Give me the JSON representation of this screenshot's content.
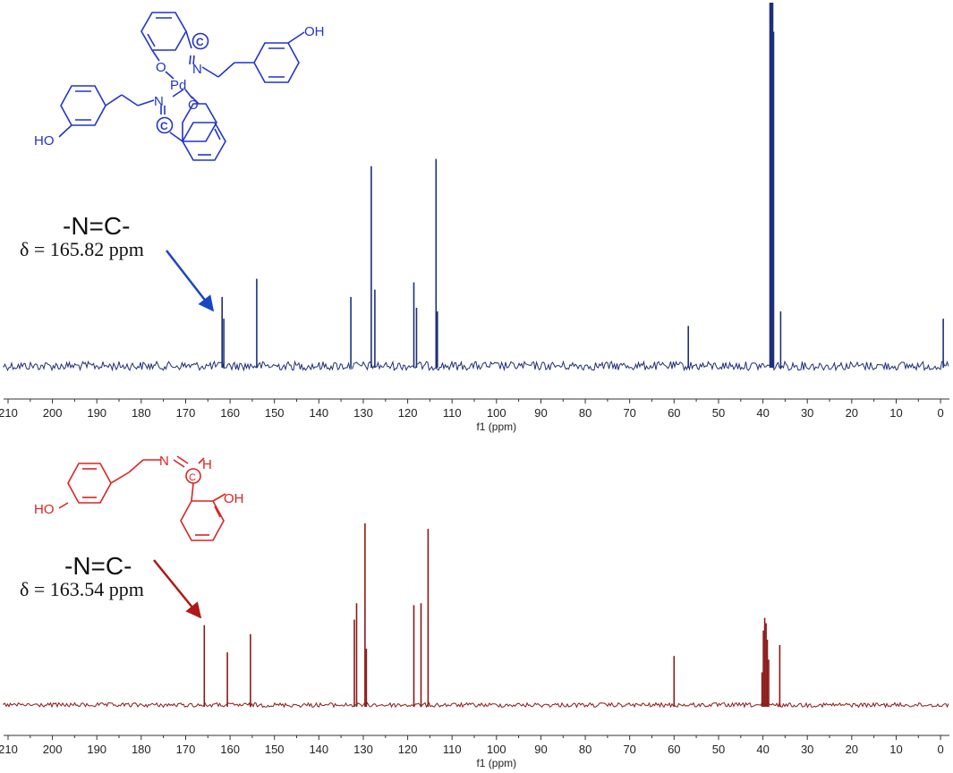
{
  "chart_data": [
    {
      "type": "line",
      "title": "",
      "xlabel": "f1 (ppm)",
      "ylabel": "",
      "xlim": [
        211,
        -2
      ],
      "x_reversed": true,
      "x_ticks": [
        "210",
        "200",
        "190",
        "180",
        "170",
        "160",
        "150",
        "140",
        "130",
        "120",
        "110",
        "100",
        "90",
        "80",
        "70",
        "60",
        "50",
        "40",
        "30",
        "20",
        "10",
        "0"
      ],
      "color": "#1f2f7a",
      "noise_level": 0.012,
      "peaks": [
        {
          "x": 161.8,
          "y": 0.19
        },
        {
          "x": 161.4,
          "y": 0.13
        },
        {
          "x": 154.0,
          "y": 0.24
        },
        {
          "x": 132.8,
          "y": 0.19
        },
        {
          "x": 128.2,
          "y": 0.55
        },
        {
          "x": 127.4,
          "y": 0.21
        },
        {
          "x": 118.6,
          "y": 0.23
        },
        {
          "x": 118.0,
          "y": 0.16
        },
        {
          "x": 113.6,
          "y": 0.57
        },
        {
          "x": 113.3,
          "y": 0.15
        },
        {
          "x": 56.8,
          "y": 0.11
        },
        {
          "x": 38.4,
          "y": 1.0
        },
        {
          "x": 38.2,
          "y": 1.0
        },
        {
          "x": 38.0,
          "y": 1.0
        },
        {
          "x": 37.8,
          "y": 1.0
        },
        {
          "x": 37.6,
          "y": 0.92
        },
        {
          "x": 36.0,
          "y": 0.15
        },
        {
          "x": -0.6,
          "y": 0.13
        }
      ],
      "annotation": {
        "text": "-N=C-",
        "delta": "δ = 165.82 ppm",
        "color": "#1a44c8"
      },
      "structure": {
        "labels": [
          "OH",
          "O",
          "N",
          "Pd",
          "N",
          "O",
          "HO",
          "C",
          "C"
        ],
        "color": "#2233cc"
      }
    },
    {
      "type": "line",
      "title": "",
      "xlabel": "f1 (ppm)",
      "ylabel": "",
      "xlim": [
        211,
        -2
      ],
      "x_reversed": true,
      "x_ticks": [
        "210",
        "200",
        "190",
        "180",
        "170",
        "160",
        "150",
        "140",
        "130",
        "120",
        "110",
        "100",
        "90",
        "80",
        "70",
        "60",
        "50",
        "40",
        "30",
        "20",
        "10",
        "0"
      ],
      "color": "#8b1a1a",
      "noise_level": 0.012,
      "peaks": [
        {
          "x": 165.8,
          "y": 0.44
        },
        {
          "x": 160.6,
          "y": 0.29
        },
        {
          "x": 155.4,
          "y": 0.39
        },
        {
          "x": 132.0,
          "y": 0.47
        },
        {
          "x": 131.5,
          "y": 0.56
        },
        {
          "x": 129.6,
          "y": 1.0
        },
        {
          "x": 129.3,
          "y": 0.31
        },
        {
          "x": 118.6,
          "y": 0.55
        },
        {
          "x": 117.0,
          "y": 0.56
        },
        {
          "x": 115.4,
          "y": 0.97
        },
        {
          "x": 60.0,
          "y": 0.27
        },
        {
          "x": 40.2,
          "y": 0.18
        },
        {
          "x": 39.9,
          "y": 0.41
        },
        {
          "x": 39.6,
          "y": 0.48
        },
        {
          "x": 39.3,
          "y": 0.45
        },
        {
          "x": 39.0,
          "y": 0.36
        },
        {
          "x": 38.7,
          "y": 0.25
        },
        {
          "x": 36.2,
          "y": 0.33
        }
      ],
      "annotation": {
        "text": "-N=C-",
        "delta": "δ = 163.54 ppm",
        "color": "#c01818"
      },
      "structure": {
        "labels": [
          "H",
          "C",
          "OH",
          "HO"
        ],
        "color": "#dd2222"
      }
    }
  ]
}
